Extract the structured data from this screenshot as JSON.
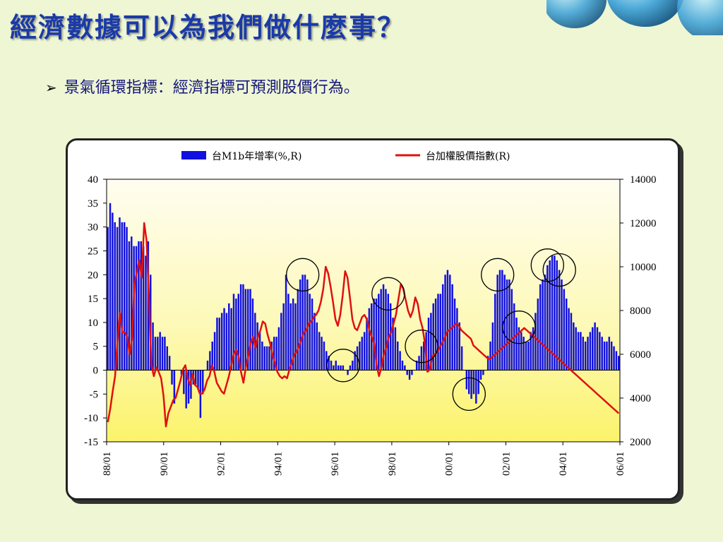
{
  "slide": {
    "title": "經濟數據可以為我們做什麼事？",
    "bullet": "景氣循環指標：經濟指標可預測股價行為。"
  },
  "colors": {
    "title": "#1a3aa8",
    "bar": "#1010e0",
    "line": "#e01010",
    "plot_bg_top": "#fffdf0",
    "plot_bg_bottom": "#fbf36a"
  },
  "chart_data": {
    "type": "bar+line",
    "legend": [
      {
        "name": "台M1b年增率(%,R)",
        "kind": "bar"
      },
      {
        "name": "台加權股價指數(R)",
        "kind": "line"
      }
    ],
    "legend_placement": "top",
    "x_labels": [
      "88/01",
      "90/01",
      "92/01",
      "94/01",
      "96/01",
      "98/01",
      "00/01",
      "02/01",
      "04/01",
      "06/01"
    ],
    "y_left_ticks": [
      "40",
      "35",
      "30",
      "25",
      "20",
      "15",
      "10",
      "5",
      "0",
      "-5",
      "-10",
      "-15"
    ],
    "y_left_range": [
      -15,
      40
    ],
    "y_right_ticks": [
      "14000",
      "12000",
      "10000",
      "8000",
      "6000",
      "4000",
      "2000"
    ],
    "y_right_range": [
      2000,
      14000
    ],
    "series": [
      {
        "name": "台M1b年增率(%,R)",
        "type": "bar",
        "axis": "left",
        "values": [
          30,
          35,
          33,
          31,
          30,
          32,
          31,
          31,
          30,
          27,
          28,
          26,
          26,
          27,
          27,
          26,
          24,
          27,
          20,
          10,
          7,
          7,
          8,
          7,
          7,
          5,
          3,
          -3,
          -7,
          0,
          0,
          -1,
          -5,
          -8,
          -7,
          -6,
          -3,
          -3,
          -4,
          -10,
          -5,
          0,
          2,
          4,
          6,
          8,
          11,
          11,
          12,
          13,
          12,
          14,
          13,
          16,
          15,
          16,
          18,
          18,
          17,
          17,
          17,
          15,
          12,
          10,
          8,
          6,
          5,
          5,
          5,
          6,
          7,
          7,
          9,
          12,
          14,
          20,
          16,
          14,
          15,
          14,
          17,
          19,
          20,
          20,
          19,
          16,
          15,
          12,
          10,
          8,
          7,
          6,
          4,
          3,
          2,
          1,
          2,
          1,
          1,
          1,
          0,
          -1,
          1,
          2,
          4,
          5,
          6,
          7,
          8,
          11,
          13,
          14,
          15,
          15,
          16,
          17,
          18,
          17,
          16,
          14,
          11,
          9,
          6,
          4,
          2,
          1,
          -1,
          -2,
          -1,
          0,
          2,
          3,
          5,
          6,
          8,
          11,
          12,
          14,
          15,
          16,
          16,
          18,
          20,
          21,
          20,
          18,
          15,
          13,
          10,
          5,
          0,
          -4,
          -5,
          -6,
          -5,
          -7,
          -5,
          -2,
          -1,
          0,
          3,
          6,
          10,
          16,
          20,
          21,
          21,
          20,
          19,
          19,
          17,
          14,
          11,
          9,
          8,
          7,
          6,
          6,
          8,
          9,
          12,
          15,
          18,
          19,
          20,
          22,
          23,
          24,
          24,
          23,
          21,
          19,
          17,
          15,
          13,
          12,
          10,
          9,
          8,
          8,
          7,
          6,
          7,
          8,
          9,
          10,
          9,
          8,
          7,
          6,
          6,
          7,
          6,
          5,
          4,
          3
        ]
      },
      {
        "name": "台加權股價指數(R)",
        "type": "line",
        "axis": "right",
        "values": [
          2900,
          3500,
          4300,
          5000,
          6600,
          7900,
          7000,
          7000,
          6800,
          6000,
          6700,
          9200,
          9800,
          10300,
          9500,
          12000,
          11200,
          8500,
          5500,
          5000,
          5400,
          5200,
          4900,
          4100,
          2700,
          3300,
          3600,
          3900,
          4000,
          4400,
          4800,
          5300,
          5500,
          4900,
          4600,
          5100,
          4600,
          4500,
          4200,
          4200,
          4400,
          4800,
          5000,
          5500,
          5200,
          4700,
          4500,
          4300,
          4200,
          4600,
          5000,
          5500,
          6000,
          6200,
          5900,
          5200,
          4700,
          5400,
          5900,
          6500,
          6800,
          6300,
          6800,
          7100,
          7500,
          7400,
          6900,
          6500,
          6000,
          5600,
          5200,
          5000,
          4900,
          5000,
          4900,
          5300,
          5600,
          6000,
          6100,
          6400,
          6700,
          7000,
          7100,
          7400,
          7500,
          7700,
          7800,
          8000,
          8400,
          9000,
          10000,
          9700,
          9100,
          8400,
          7600,
          7300,
          7800,
          8700,
          9800,
          9500,
          8600,
          7600,
          7200,
          7100,
          7400,
          7700,
          7800,
          7600,
          7100,
          6800,
          6500,
          5500,
          5000,
          5400,
          6000,
          6300,
          6800,
          7000,
          7400,
          7800,
          8500,
          9200,
          9000,
          8500,
          8000,
          7700,
          8000,
          8600,
          8300,
          7600,
          7200,
          6500,
          5200,
          5300,
          5900,
          6000,
          6100,
          6300,
          6500,
          6700,
          7000,
          7100,
          7200,
          7300,
          7400,
          7300,
          7100,
          7000,
          6900,
          6800,
          6700,
          6400,
          6300,
          6200,
          6100,
          6000,
          5900,
          5800,
          5800,
          5900,
          6000,
          6100,
          6200,
          6300,
          6400,
          6500,
          6600,
          6700,
          6800,
          6900,
          7000,
          7100,
          7200,
          7100,
          7000,
          6900,
          6800,
          6700,
          6600,
          6500,
          6400,
          6300,
          6200,
          6100,
          6000,
          5900,
          5800,
          5700,
          5600,
          5500,
          5400,
          5300,
          5200,
          5100,
          5000,
          4900,
          4800,
          4700,
          4600,
          4500,
          4400,
          4300,
          4200,
          4100,
          4000,
          3900,
          3800,
          3700,
          3600,
          3500,
          3400,
          3300
        ]
      }
    ],
    "circled_regions": [
      {
        "label": "",
        "x_index": 82
      },
      {
        "label": "",
        "x_index": 99
      },
      {
        "label": "",
        "x_index": 118
      },
      {
        "label": "",
        "x_index": 132
      },
      {
        "label": "",
        "x_index": 152
      },
      {
        "label": "",
        "x_index": 164
      },
      {
        "label": "",
        "x_index": 173
      },
      {
        "label": "",
        "x_index": 185
      },
      {
        "label": "",
        "x_index": 190
      }
    ]
  }
}
